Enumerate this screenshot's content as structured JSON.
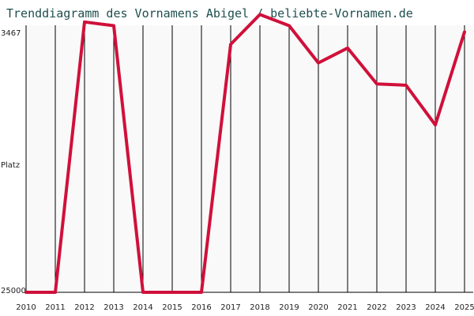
{
  "chart_data": {
    "type": "line",
    "title": "Trenddiagramm des Vornamens Abigel / beliebte-Vornamen.de",
    "xlabel": "",
    "ylabel": "Platz",
    "x": [
      "2010",
      "2011",
      "2012",
      "2013",
      "2014",
      "2015",
      "2016",
      "2017",
      "2018",
      "2019",
      "2020",
      "2021",
      "2022",
      "2023",
      "2024",
      "2025"
    ],
    "y_tick_labels": [
      "3467",
      "25000"
    ],
    "ylim": [
      3467,
      25000
    ],
    "y_inverted": true,
    "grid": "vertical",
    "series": [
      {
        "name": "",
        "color": "#d0103a",
        "values": [
          25000,
          25000,
          3200,
          3500,
          25000,
          25000,
          25000,
          5000,
          2600,
          3500,
          6500,
          5300,
          8200,
          8300,
          11500,
          4000
        ]
      }
    ]
  }
}
